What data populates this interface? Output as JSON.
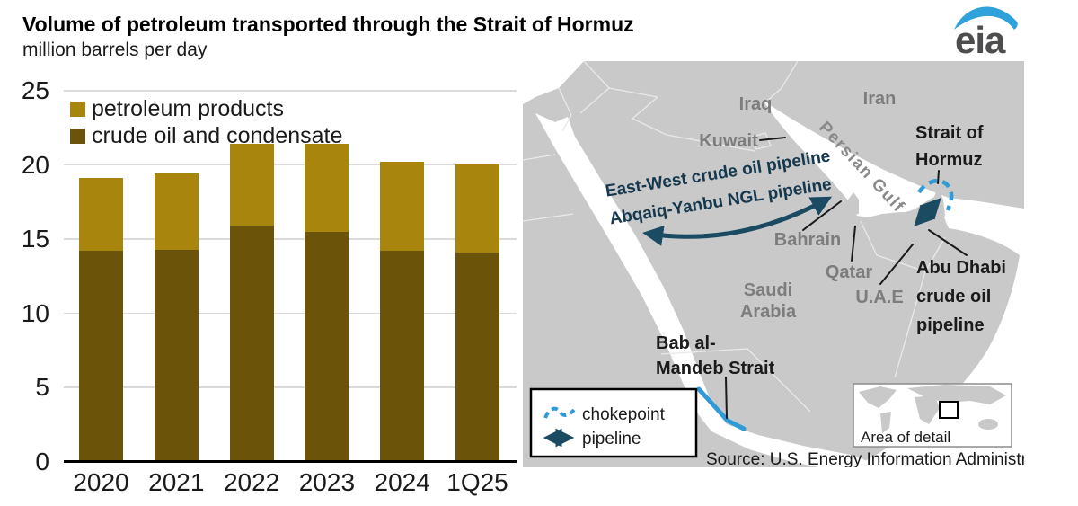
{
  "header": {
    "title": "Volume of petroleum transported through the Strait of Hormuz",
    "subtitle": "million barrels per day"
  },
  "logo": {
    "text": "eia"
  },
  "chart_data": {
    "type": "bar",
    "stacked": true,
    "title": "Volume of petroleum transported through the Strait of Hormuz",
    "ylabel": "million barrels per day",
    "categories": [
      "2020",
      "2021",
      "2022",
      "2023",
      "2024",
      "1Q25"
    ],
    "series": [
      {
        "name": "crude oil and condensate",
        "color": "#6B5409",
        "values": [
          14.2,
          14.3,
          15.9,
          15.5,
          14.2,
          14.1
        ]
      },
      {
        "name": "petroleum products",
        "color": "#A8860D",
        "values": [
          4.9,
          5.1,
          5.5,
          5.9,
          6.0,
          6.0
        ]
      }
    ],
    "totals": [
      19.1,
      19.4,
      21.4,
      21.4,
      20.2,
      20.1
    ],
    "ylim": [
      0,
      25
    ],
    "yticks": [
      0,
      5,
      10,
      15,
      20,
      25
    ],
    "grid": true,
    "legend_position": "top-left"
  },
  "map": {
    "labels": {
      "iraq": "Iraq",
      "iran": "Iran",
      "kuwait": "Kuwait",
      "bahrain": "Bahrain",
      "qatar": "Qatar",
      "uae": "U.A.E",
      "saudi1": "Saudi",
      "saudi2": "Arabia",
      "persian_gulf": "Persian Gulf",
      "strait1": "Strait of",
      "strait2": "Hormuz",
      "abu1": "Abu Dhabi",
      "abu2": "crude oil",
      "abu3": "pipeline",
      "bab1": "Bab al-",
      "bab2": "Mandeb Strait",
      "pipeline1": "East-West crude oil pipeline",
      "pipeline2": "Abqaiq-Yanbu NGL pipeline"
    },
    "legend": {
      "chokepoint": "chokepoint",
      "pipeline": "pipeline"
    },
    "inset_label": "Area of detail",
    "source": "Source: U.S. Energy Information Administration",
    "colors": {
      "land": "#C9C9C9",
      "water": "#FFFFFF",
      "chokepoint": "#2E9BD8",
      "pipeline_arrow": "#1B4A63",
      "country_label": "#7D7D7D"
    }
  }
}
